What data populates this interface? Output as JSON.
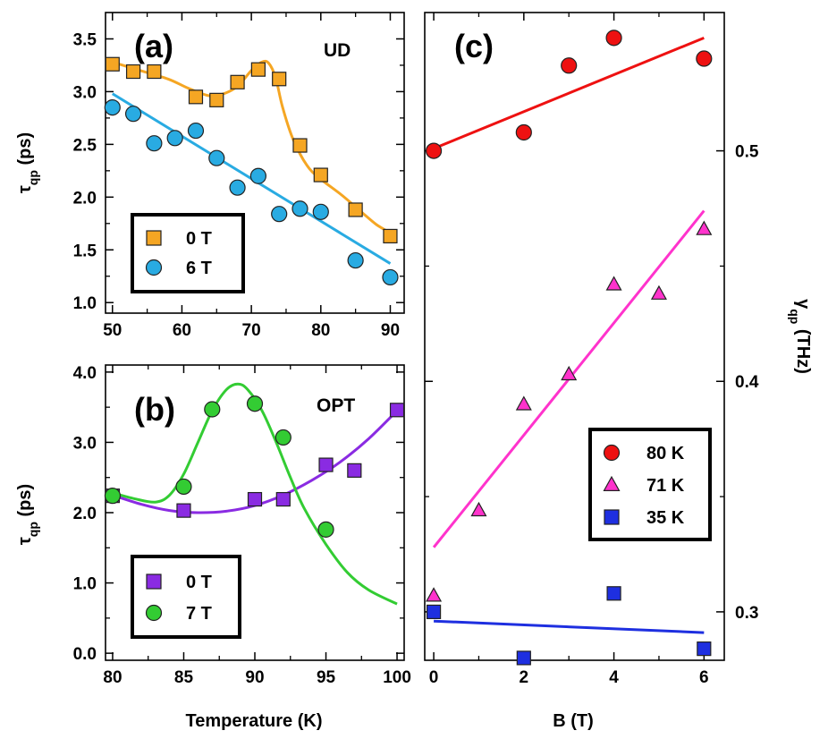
{
  "chart_data": [
    {
      "panel": "a",
      "type": "scatter",
      "panel_label": "(a)",
      "tag": "UD",
      "xlabel": "",
      "ylabel": "τ",
      "ylabel_sub": "qp",
      "ylabel_unit": " (ps)",
      "xlim": [
        49,
        92
      ],
      "ylim": [
        0.9,
        3.75
      ],
      "xticks": [
        50,
        60,
        70,
        80,
        90
      ],
      "xtick_labels": [
        "50",
        "60",
        "70",
        "80",
        "90"
      ],
      "yticks": [
        1.0,
        1.5,
        2.0,
        2.5,
        3.0,
        3.5
      ],
      "ytick_labels": [
        "1.0",
        "1.5",
        "2.0",
        "2.5",
        "3.0",
        "3.5"
      ],
      "series": [
        {
          "name": "0 T",
          "legend": "0 T",
          "marker": "square",
          "color": "#f5a623",
          "x": [
            50,
            53,
            56,
            62,
            65,
            68,
            71,
            74,
            77,
            80,
            85,
            90
          ],
          "y": [
            3.26,
            3.19,
            3.19,
            2.95,
            2.92,
            3.09,
            3.21,
            3.12,
            2.49,
            2.21,
            1.88,
            1.63
          ],
          "fit": {
            "x": [
              50,
              54,
              58,
              61,
              64,
              66,
              68,
              70,
              71.5,
              72.5,
              73.5,
              74.5,
              76,
              78,
              80,
              83,
              86,
              88,
              90
            ],
            "y": [
              3.28,
              3.2,
              3.12,
              3.03,
              2.96,
              2.98,
              3.05,
              3.2,
              3.28,
              3.27,
              3.13,
              2.85,
              2.55,
              2.3,
              2.17,
              2.02,
              1.85,
              1.74,
              1.66
            ]
          }
        },
        {
          "name": "6 T",
          "legend": "6 T",
          "marker": "circle",
          "color": "#29abe2",
          "x": [
            50,
            53,
            56,
            59,
            62,
            65,
            68,
            71,
            74,
            77,
            80,
            85,
            90
          ],
          "y": [
            2.85,
            2.79,
            2.51,
            2.56,
            2.63,
            2.37,
            2.09,
            2.2,
            1.84,
            1.89,
            1.86,
            1.4,
            1.24
          ],
          "fit": {
            "x": [
              50,
              90
            ],
            "y": [
              2.98,
              1.37
            ]
          }
        }
      ]
    },
    {
      "panel": "b",
      "type": "scatter",
      "panel_label": "(b)",
      "tag": "OPT",
      "xlabel": "Temperature (K)",
      "ylabel": "τ",
      "ylabel_sub": "qp",
      "ylabel_unit": " (ps)",
      "xlim": [
        79.5,
        100.5
      ],
      "ylim": [
        -0.1,
        4.1
      ],
      "xticks": [
        80,
        85,
        90,
        95,
        100
      ],
      "xtick_labels": [
        "80",
        "85",
        "90",
        "95",
        "100"
      ],
      "yticks": [
        0.0,
        1.0,
        2.0,
        3.0,
        4.0
      ],
      "ytick_labels": [
        "0.0",
        "1.0",
        "2.0",
        "3.0",
        "4.0"
      ],
      "series": [
        {
          "name": "0 T",
          "legend": "0 T",
          "marker": "square",
          "color": "#8a2be2",
          "x": [
            80,
            85,
            90,
            92,
            95,
            97,
            100
          ],
          "y": [
            2.24,
            2.03,
            2.19,
            2.19,
            2.68,
            2.6,
            3.46
          ],
          "fit": {
            "x": [
              80,
              82,
              84,
              86,
              88,
              90,
              92,
              94,
              96,
              98,
              100
            ],
            "y": [
              2.25,
              2.12,
              2.03,
              2.0,
              2.02,
              2.1,
              2.25,
              2.46,
              2.72,
              3.05,
              3.45
            ]
          }
        },
        {
          "name": "7 T",
          "legend": "7 T",
          "marker": "circle",
          "color": "#33cc33",
          "x": [
            80,
            85,
            87,
            90,
            92,
            95
          ],
          "y": [
            2.24,
            2.37,
            3.47,
            3.55,
            3.07,
            1.76
          ],
          "fit": {
            "x": [
              80,
              81.5,
              83,
              84,
              85,
              86,
              87,
              88,
              88.8,
              89.5,
              90.5,
              91.5,
              92.5,
              93.5,
              95,
              96.5,
              98,
              100
            ],
            "y": [
              2.28,
              2.2,
              2.15,
              2.25,
              2.55,
              3.0,
              3.45,
              3.75,
              3.83,
              3.75,
              3.45,
              3.0,
              2.5,
              2.05,
              1.55,
              1.15,
              0.9,
              0.7
            ]
          }
        }
      ]
    },
    {
      "panel": "c",
      "type": "scatter",
      "panel_label": "(c)",
      "xlabel": "B (T)",
      "ylabel": "γ",
      "ylabel_sub": "qp",
      "ylabel_unit": " (THz)",
      "xlim": [
        -0.2,
        6.45
      ],
      "ylim": [
        0.279,
        0.56
      ],
      "xticks": [
        0,
        2,
        4,
        6
      ],
      "xtick_labels": [
        "0",
        "2",
        "4",
        "6"
      ],
      "yticks": [
        0.3,
        0.4,
        0.5
      ],
      "ytick_labels": [
        "0.3",
        "0.4",
        "0.5"
      ],
      "series": [
        {
          "name": "80 K",
          "legend": "80 K",
          "marker": "circle",
          "color": "#ee1111",
          "x": [
            0,
            2,
            3,
            4,
            6
          ],
          "y": [
            0.5,
            0.508,
            0.537,
            0.549,
            0.54
          ],
          "fit": {
            "x": [
              0,
              6
            ],
            "y": [
              0.501,
              0.549
            ]
          }
        },
        {
          "name": "71 K",
          "legend": "71 K",
          "marker": "triangle",
          "color": "#ff33cc",
          "x": [
            0,
            1,
            2,
            3,
            4,
            5,
            6
          ],
          "y": [
            0.307,
            0.344,
            0.39,
            0.403,
            0.442,
            0.438,
            0.466
          ],
          "fit": {
            "x": [
              0,
              6
            ],
            "y": [
              0.328,
              0.474
            ]
          }
        },
        {
          "name": "35 K",
          "legend": "35 K",
          "marker": "square",
          "color": "#1e2fe0",
          "x": [
            0,
            2,
            4,
            6
          ],
          "y": [
            0.3,
            0.28,
            0.308,
            0.284
          ],
          "fit": {
            "x": [
              0,
              6
            ],
            "y": [
              0.296,
              0.291
            ]
          }
        }
      ]
    }
  ]
}
